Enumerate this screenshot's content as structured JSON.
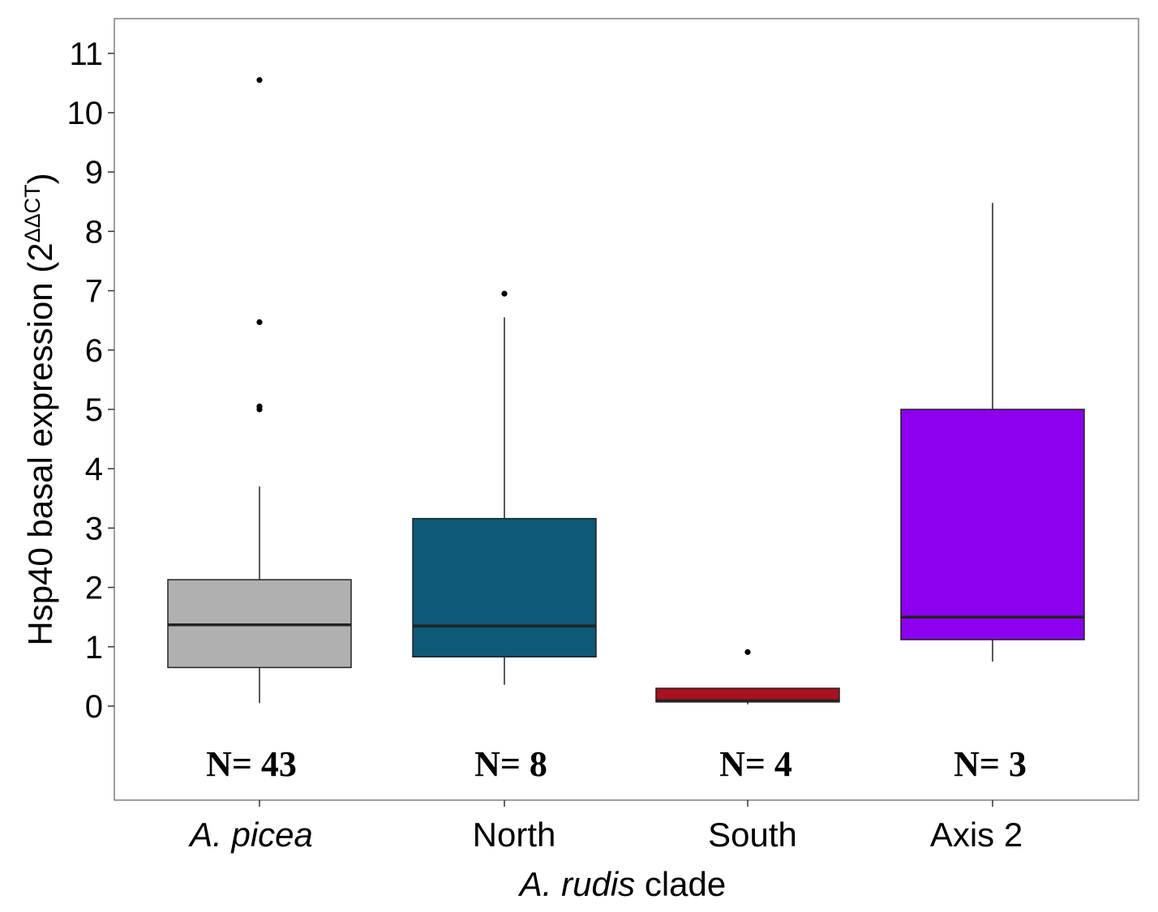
{
  "chart_data": {
    "type": "box",
    "ylabel": {
      "main": "Hsp40 basal expression (2",
      "superscript": "ΔΔCT",
      "close": ")"
    },
    "xlabel": {
      "italic": "A. rudis",
      "rest": " clade"
    },
    "ylim": [
      -1.6,
      11.6
    ],
    "yticks": [
      0,
      1,
      2,
      3,
      4,
      5,
      6,
      7,
      8,
      9,
      10,
      11
    ],
    "grid": false,
    "legend": "none",
    "groups": [
      {
        "label": "A. picea",
        "italic": true,
        "n_label": "N= 43",
        "color": "#b0b0b0",
        "whisker_low": 0.05,
        "q1": 0.65,
        "median": 1.37,
        "q3": 2.13,
        "whisker_high": 3.7,
        "outliers": [
          5.0,
          5.05,
          6.47,
          10.55
        ]
      },
      {
        "label": "North",
        "italic": false,
        "n_label": "N= 8",
        "color": "#0e5878",
        "whisker_low": 0.36,
        "q1": 0.83,
        "median": 1.35,
        "q3": 3.16,
        "whisker_high": 6.55,
        "outliers": [
          6.95
        ]
      },
      {
        "label": "South",
        "italic": false,
        "n_label": "N= 4",
        "color": "#a8111e",
        "whisker_low": 0.03,
        "q1": 0.07,
        "median": 0.09,
        "q3": 0.3,
        "whisker_high": 0.3,
        "outliers": [
          0.91
        ]
      },
      {
        "label": "Axis 2",
        "italic": false,
        "n_label": "N= 3",
        "color": "#8c00ef",
        "whisker_low": 0.75,
        "q1": 1.12,
        "median": 1.5,
        "q3": 5.0,
        "whisker_high": 8.48,
        "outliers": []
      }
    ]
  }
}
